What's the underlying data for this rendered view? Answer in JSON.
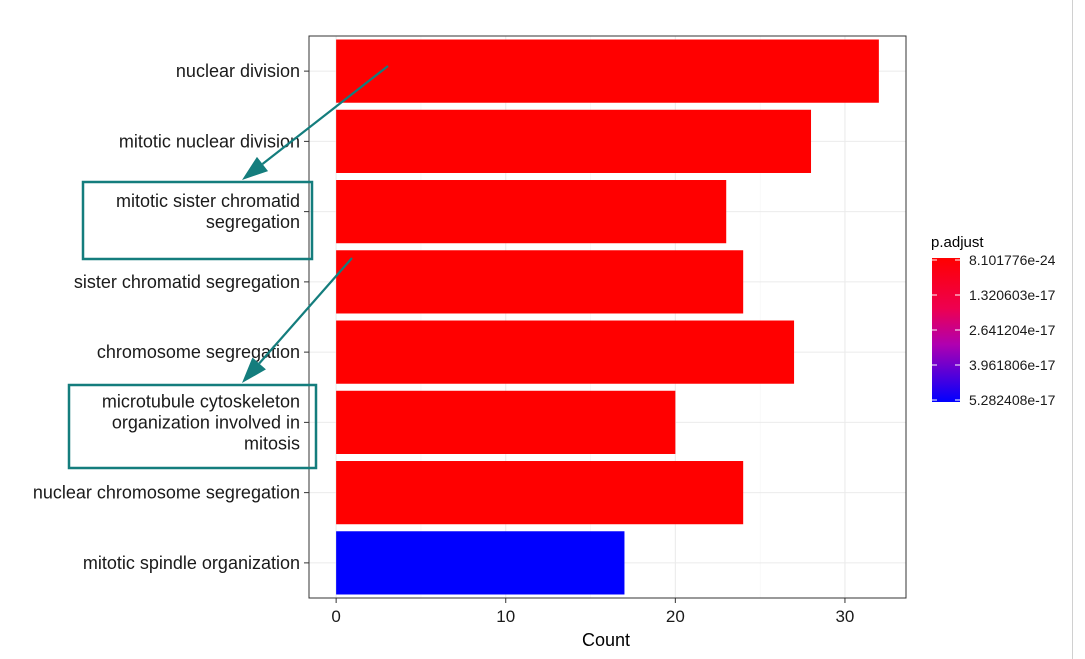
{
  "chart_data": {
    "type": "bar",
    "orientation": "horizontal",
    "categories": [
      "nuclear division",
      "mitotic nuclear division",
      "mitotic sister chromatid segregation",
      "sister chromatid segregation",
      "chromosome segregation",
      "microtubule cytoskeleton organization involved in mitosis",
      "nuclear chromosome segregation",
      "mitotic spindle organization"
    ],
    "category_display": [
      [
        "nuclear division"
      ],
      [
        "mitotic nuclear division"
      ],
      [
        "mitotic sister chromatid",
        "segregation"
      ],
      [
        "sister chromatid segregation"
      ],
      [
        "chromosome segregation"
      ],
      [
        "microtubule cytoskeleton",
        "organization involved in",
        "mitosis"
      ],
      [
        "nuclear chromosome segregation"
      ],
      [
        "mitotic spindle organization"
      ]
    ],
    "values": [
      32,
      28,
      23,
      24,
      27,
      20,
      24,
      17
    ],
    "colors": [
      "#ff0000",
      "#ff0000",
      "#ff0000",
      "#ff0000",
      "#ff0000",
      "#ff0000",
      "#ff0000",
      "#0000ff"
    ],
    "xlabel": "Count",
    "ylabel": "",
    "xlim": [
      -1.6,
      33.6
    ],
    "xticks": [
      0,
      10,
      20,
      30
    ],
    "xtick_labels": [
      "0",
      "10",
      "20",
      "30"
    ],
    "grid": true,
    "legend": {
      "title": "p.adjust",
      "position": "right",
      "labels": [
        "8.101776e-24",
        "1.320603e-17",
        "2.641204e-17",
        "3.961806e-17",
        "5.282408e-17"
      ],
      "color_low": "#ff0000",
      "color_high": "#0000ff"
    },
    "annotations": {
      "highlight_boxes": [
        2,
        5
      ],
      "arrow_color": "#147d7d"
    }
  }
}
